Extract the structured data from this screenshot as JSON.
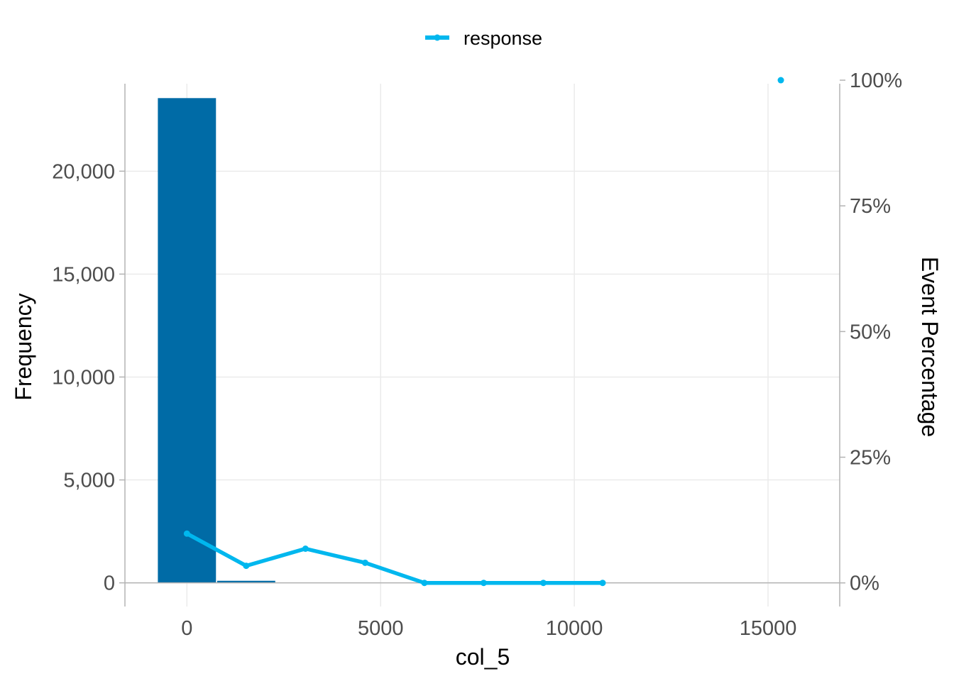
{
  "chart_data": {
    "type": "bar",
    "xlabel": "col_5",
    "ylabel": "Frequency",
    "y2label": "Event Percentage",
    "x_ticks": [
      0,
      5000,
      10000,
      15000
    ],
    "x_tick_labels": [
      "0",
      "5000",
      "10000",
      "15000"
    ],
    "xlim": [
      -1600,
      16850
    ],
    "y_ticks": [
      0,
      5000,
      10000,
      15000,
      20000
    ],
    "y_tick_labels": [
      "0",
      "5,000",
      "10,000",
      "15,000",
      "20,000"
    ],
    "ylim": [
      -1150,
      24250
    ],
    "y2_ticks": [
      0,
      25,
      50,
      75,
      100
    ],
    "y2_tick_labels": [
      "0%",
      "25%",
      "50%",
      "75%",
      "100%"
    ],
    "y2lim": [
      -4.7,
      99.3
    ],
    "grid": true,
    "legend_position": "top",
    "bars": [
      {
        "x_start": -750,
        "x_end": 750,
        "count": 23550
      },
      {
        "x_start": 780,
        "x_end": 2280,
        "count": 100
      }
    ],
    "series": [
      {
        "name": "response",
        "color": "#00b7ee",
        "points": [
          {
            "x": 0,
            "y": 9.8
          },
          {
            "x": 1530,
            "y": 3.4
          },
          {
            "x": 3060,
            "y": 6.8
          },
          {
            "x": 4600,
            "y": 4.0
          },
          {
            "x": 6130,
            "y": 0
          },
          {
            "x": 7660,
            "y": 0
          },
          {
            "x": 9200,
            "y": 0
          },
          {
            "x": 10730,
            "y": 0
          }
        ],
        "isolated_points": [
          {
            "x": 15330,
            "y": 100
          }
        ]
      }
    ],
    "bar_color": "#006ba6"
  }
}
